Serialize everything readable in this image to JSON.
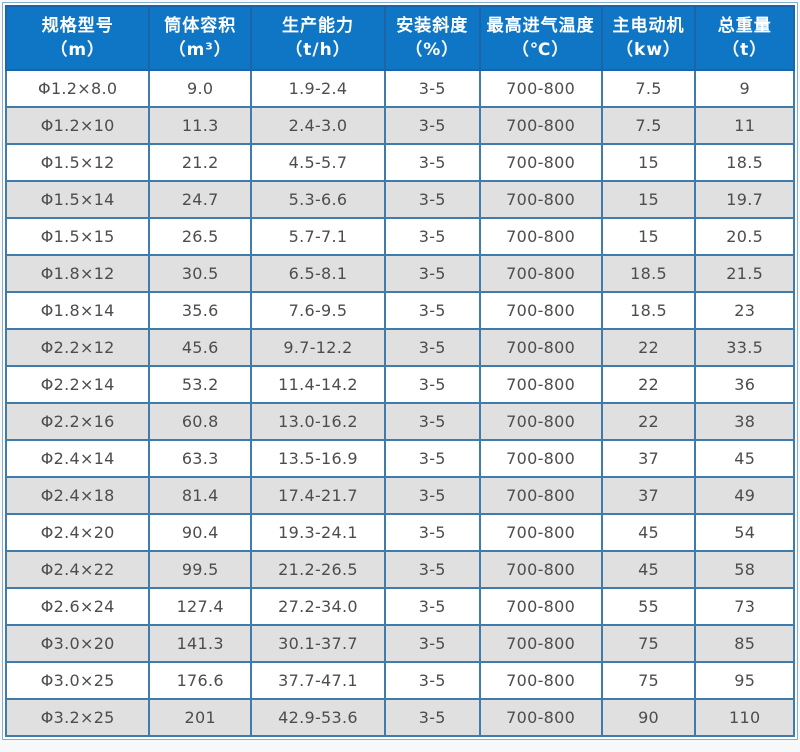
{
  "chart_data": {
    "type": "table",
    "title": "",
    "columns": [
      {
        "label": "规格型号",
        "unit": "（m）"
      },
      {
        "label": "筒体容积",
        "unit": "（m³）"
      },
      {
        "label": "生产能力",
        "unit": "（t/h）"
      },
      {
        "label": "安装斜度",
        "unit": "（%）"
      },
      {
        "label": "最高进气温度",
        "unit": "（℃）"
      },
      {
        "label": "主电动机",
        "unit": "（kw）"
      },
      {
        "label": "总重量",
        "unit": "（t）"
      }
    ],
    "rows": [
      [
        "Φ1.2×8.0",
        "9.0",
        "1.9-2.4",
        "3-5",
        "700-800",
        "7.5",
        "9"
      ],
      [
        "Φ1.2×10",
        "11.3",
        "2.4-3.0",
        "3-5",
        "700-800",
        "7.5",
        "11"
      ],
      [
        "Φ1.5×12",
        "21.2",
        "4.5-5.7",
        "3-5",
        "700-800",
        "15",
        "18.5"
      ],
      [
        "Φ1.5×14",
        "24.7",
        "5.3-6.6",
        "3-5",
        "700-800",
        "15",
        "19.7"
      ],
      [
        "Φ1.5×15",
        "26.5",
        "5.7-7.1",
        "3-5",
        "700-800",
        "15",
        "20.5"
      ],
      [
        "Φ1.8×12",
        "30.5",
        "6.5-8.1",
        "3-5",
        "700-800",
        "18.5",
        "21.5"
      ],
      [
        "Φ1.8×14",
        "35.6",
        "7.6-9.5",
        "3-5",
        "700-800",
        "18.5",
        "23"
      ],
      [
        "Φ2.2×12",
        "45.6",
        "9.7-12.2",
        "3-5",
        "700-800",
        "22",
        "33.5"
      ],
      [
        "Φ2.2×14",
        "53.2",
        "11.4-14.2",
        "3-5",
        "700-800",
        "22",
        "36"
      ],
      [
        "Φ2.2×16",
        "60.8",
        "13.0-16.2",
        "3-5",
        "700-800",
        "22",
        "38"
      ],
      [
        "Φ2.4×14",
        "63.3",
        "13.5-16.9",
        "3-5",
        "700-800",
        "37",
        "45"
      ],
      [
        "Φ2.4×18",
        "81.4",
        "17.4-21.7",
        "3-5",
        "700-800",
        "37",
        "49"
      ],
      [
        "Φ2.4×20",
        "90.4",
        "19.3-24.1",
        "3-5",
        "700-800",
        "45",
        "54"
      ],
      [
        "Φ2.4×22",
        "99.5",
        "21.2-26.5",
        "3-5",
        "700-800",
        "45",
        "58"
      ],
      [
        "Φ2.6×24",
        "127.4",
        "27.2-34.0",
        "3-5",
        "700-800",
        "55",
        "73"
      ],
      [
        "Φ3.0×20",
        "141.3",
        "30.1-37.7",
        "3-5",
        "700-800",
        "75",
        "85"
      ],
      [
        "Φ3.0×25",
        "176.6",
        "37.7-47.1",
        "3-5",
        "700-800",
        "75",
        "95"
      ],
      [
        "Φ3.2×25",
        "201",
        "42.9-53.6",
        "3-5",
        "700-800",
        "90",
        "110"
      ]
    ],
    "layout_hints": {
      "header_rows": 1,
      "zebra_striping": true,
      "all_cells_centered": true
    }
  },
  "colors": {
    "header_bg": "#0e76c4",
    "header_text": "#ffffff",
    "header_border": "#1c64a5",
    "cell_border": "#3f7cab",
    "row_alt_bg": "#e0e0e0",
    "body_text": "#4d4d4d",
    "page_bg": "#f6f8f9"
  }
}
